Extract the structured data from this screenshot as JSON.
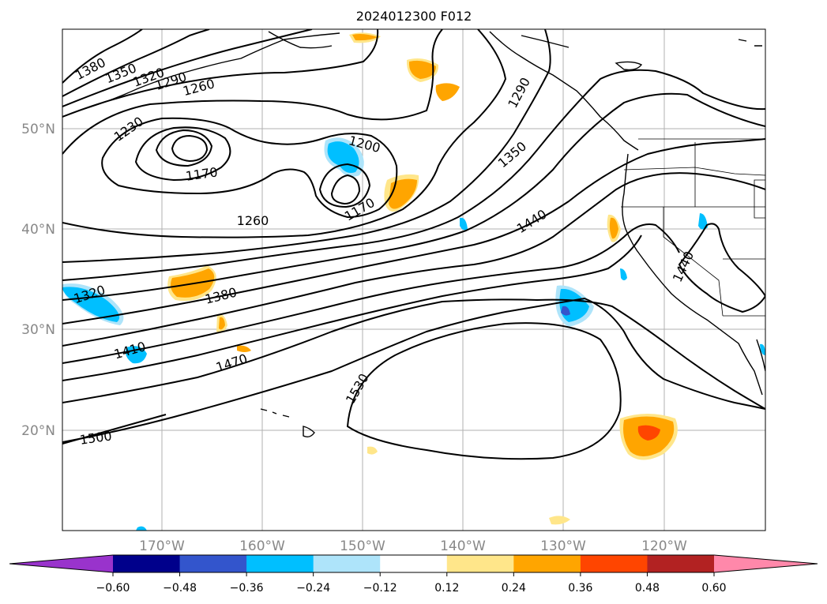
{
  "title": "2024012300 F012",
  "lat_labels": [
    "50°N",
    "40°N",
    "30°N",
    "20°N"
  ],
  "lon_labels": [
    "170°W",
    "160°W",
    "150°W",
    "140°W",
    "130°W",
    "120°W"
  ],
  "contour_labels": [
    "1380",
    "1350",
    "1320",
    "1290",
    "1260",
    "1230",
    "1170",
    "1200",
    "1170",
    "1290",
    "1350",
    "1260",
    "1440",
    "1320",
    "1380",
    "1410",
    "1470",
    "1440",
    "1530",
    "1500"
  ],
  "colorbar": {
    "ticks": [
      "−0.60",
      "−0.48",
      "−0.36",
      "−0.24",
      "−0.12",
      "0.12",
      "0.24",
      "0.36",
      "0.48",
      "0.60"
    ],
    "colors": {
      "under": "#9933cc",
      "bins": [
        "#00008b",
        "#3355cc",
        "#00bfff",
        "#aee4fa",
        "#ffffff",
        "#ffe68a",
        "#ffa500",
        "#ff4500",
        "#b22222"
      ],
      "over": "#ff88aa"
    }
  }
}
